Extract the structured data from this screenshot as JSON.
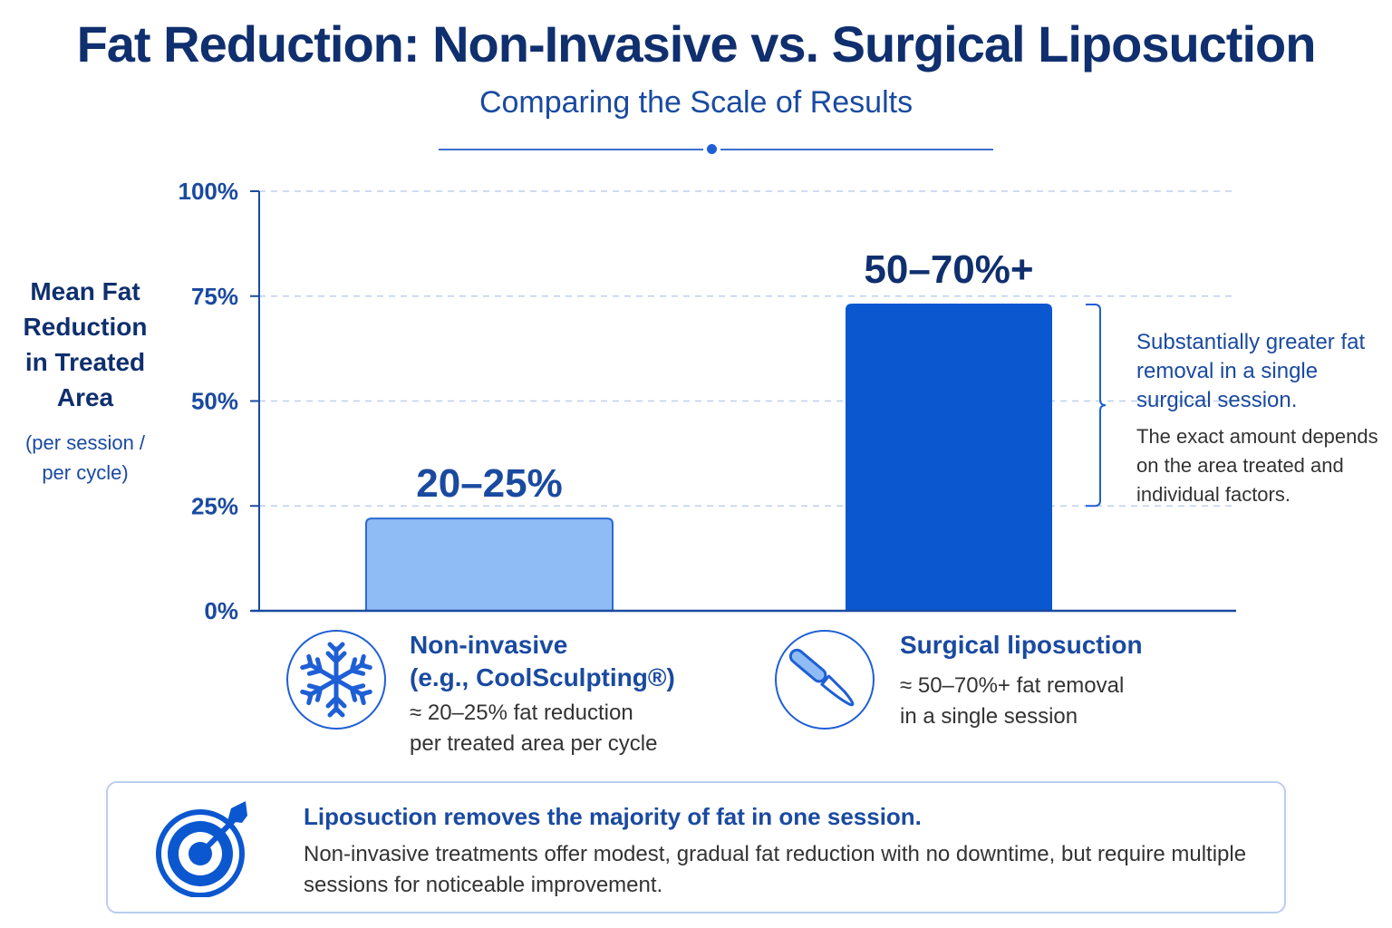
{
  "header": {
    "title": "Fat Reduction: Non-Invasive vs. Surgical Liposuction",
    "subtitle": "Comparing the Scale of Results"
  },
  "chart_data": {
    "type": "bar",
    "categories": [
      "Non-invasive (e.g., CoolSculpting®)",
      "Surgical liposuction"
    ],
    "values": [
      22,
      73
    ],
    "data_labels": [
      "20–25%",
      "50–70%+"
    ],
    "ylabel_lines": [
      "Mean Fat",
      "Reduction",
      "in Treated",
      "Area"
    ],
    "ylabel_sub": "(per session / per cycle)",
    "yticks": [
      "0%",
      "25%",
      "50%",
      "75%",
      "100%"
    ],
    "ytick_values": [
      0,
      25,
      50,
      75,
      100
    ],
    "ylim": [
      0,
      100
    ],
    "grid": true,
    "bar_colors": [
      "#8fbcf5",
      "#0b57d0"
    ]
  },
  "callout": {
    "strong": "Substantially greater fat removal in a single surgical session.",
    "body": "The exact amount depends on the area treated and individual factors."
  },
  "categories": [
    {
      "icon": "snowflake-icon",
      "title_lines": [
        "Non-invasive",
        "(e.g., CoolSculpting®)"
      ],
      "desc_lines": [
        "≈ 20–25% fat reduction",
        "per treated area per cycle"
      ]
    },
    {
      "icon": "scalpel-icon",
      "title_lines": [
        "Surgical liposuction"
      ],
      "desc_lines": [
        "≈ 50–70%+ fat removal",
        "in a single session"
      ]
    }
  ],
  "note": {
    "icon": "target-icon",
    "strong": "Liposuction removes the majority of fat in one session.",
    "body": "Non-invasive treatments offer modest, gradual fat reduction with no downtime, but require multiple sessions for noticeable improvement."
  },
  "colors": {
    "accent": "#1f5fd6",
    "title": "#0f2f6e",
    "axis": "#1a4aa0",
    "grid": "#bcd0ee"
  }
}
